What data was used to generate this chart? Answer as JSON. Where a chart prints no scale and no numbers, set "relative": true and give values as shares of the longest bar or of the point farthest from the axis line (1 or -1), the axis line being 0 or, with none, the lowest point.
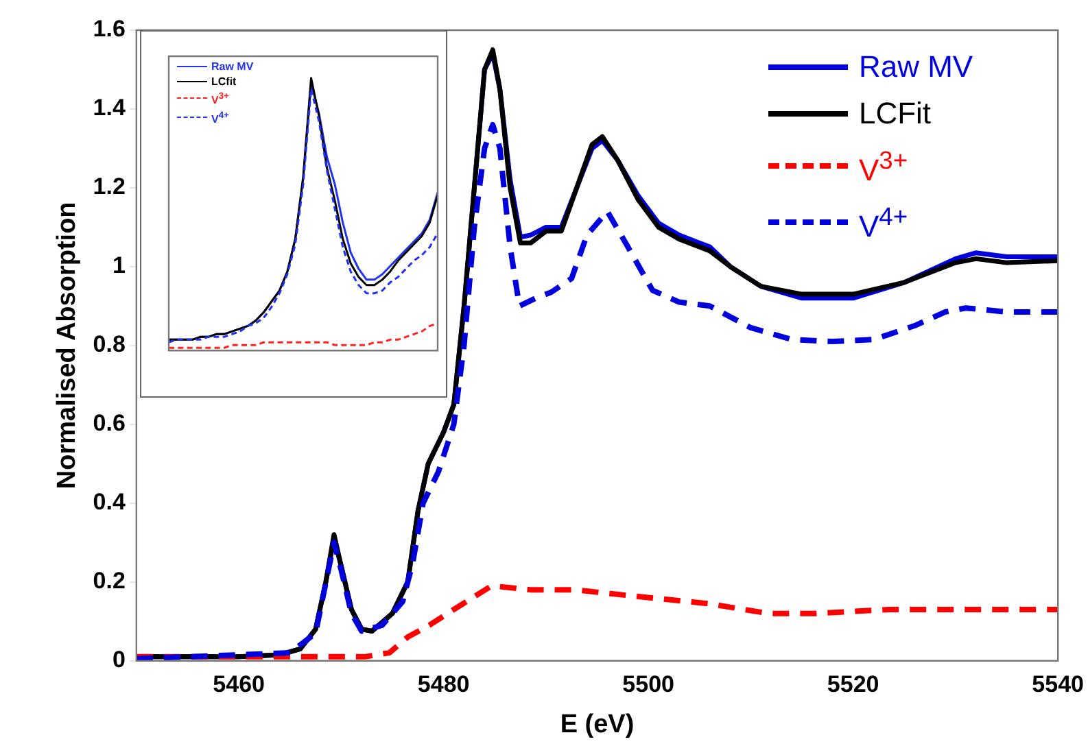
{
  "chart_data": [
    {
      "type": "line",
      "xlabel": "E (eV)",
      "ylabel": "Normalised Absorption",
      "xlim": [
        5450,
        5540
      ],
      "xticks": [
        5460,
        5480,
        5500,
        5520,
        5540
      ],
      "ylim": [
        0,
        1.6
      ],
      "yticks": [
        0,
        0.2,
        0.4,
        0.6,
        0.8,
        1,
        1.2,
        1.4,
        1.6
      ],
      "legend": "top right",
      "grid": false,
      "series": [
        {
          "name": "Raw MV",
          "color": "#0000dd",
          "line_style": "solid",
          "x": [
            5450,
            5460,
            5464,
            5466,
            5467.5,
            5468.5,
            5469.3,
            5470,
            5471,
            5472,
            5473,
            5475,
            5476.5,
            5477.5,
            5478.5,
            5480,
            5481,
            5482,
            5483,
            5484,
            5484.8,
            5485.5,
            5486.5,
            5487.5,
            5488.5,
            5490,
            5491.5,
            5493,
            5494.5,
            5495.5,
            5497,
            5499,
            5501,
            5503,
            5506,
            5508,
            5511,
            5515,
            5520,
            5525,
            5530,
            5532,
            5535,
            5540
          ],
          "values": [
            0.01,
            0.01,
            0.015,
            0.03,
            0.08,
            0.2,
            0.31,
            0.24,
            0.13,
            0.08,
            0.075,
            0.12,
            0.2,
            0.38,
            0.5,
            0.58,
            0.65,
            0.9,
            1.2,
            1.5,
            1.54,
            1.45,
            1.22,
            1.075,
            1.08,
            1.1,
            1.1,
            1.2,
            1.3,
            1.32,
            1.27,
            1.18,
            1.11,
            1.08,
            1.05,
            1.0,
            0.95,
            0.92,
            0.92,
            0.96,
            1.02,
            1.035,
            1.025,
            1.025
          ]
        },
        {
          "name": "LCFit",
          "color": "#000000",
          "line_style": "solid",
          "x": [
            5450,
            5460,
            5464,
            5466,
            5467.5,
            5468.5,
            5469.3,
            5470,
            5471,
            5472,
            5473,
            5475,
            5476.5,
            5477.5,
            5478.5,
            5480,
            5481,
            5482,
            5483,
            5484,
            5484.8,
            5485.5,
            5486.5,
            5487.5,
            5488.5,
            5490,
            5491.5,
            5493,
            5494.5,
            5495.5,
            5497,
            5499,
            5501,
            5503,
            5506,
            5508,
            5511,
            5515,
            5520,
            5525,
            5530,
            5532,
            5535,
            5540
          ],
          "values": [
            0.01,
            0.01,
            0.015,
            0.03,
            0.08,
            0.2,
            0.32,
            0.24,
            0.13,
            0.08,
            0.075,
            0.12,
            0.2,
            0.38,
            0.5,
            0.58,
            0.65,
            0.9,
            1.2,
            1.5,
            1.55,
            1.45,
            1.2,
            1.06,
            1.06,
            1.09,
            1.09,
            1.2,
            1.31,
            1.33,
            1.27,
            1.17,
            1.1,
            1.07,
            1.04,
            1.0,
            0.95,
            0.93,
            0.93,
            0.96,
            1.01,
            1.02,
            1.01,
            1.015
          ]
        },
        {
          "name": "V$^{3+}$",
          "color": "#ff0000",
          "line_style": "dashed",
          "x": [
            5450,
            5465,
            5472.3,
            5474.7,
            5476.5,
            5478.6,
            5481,
            5484.7,
            5488.5,
            5492.8,
            5498.2,
            5505.8,
            5511.7,
            5516.4,
            5523.5,
            5530,
            5540
          ],
          "values": [
            0.01,
            0.01,
            0.01,
            0.02,
            0.06,
            0.09,
            0.13,
            0.19,
            0.18,
            0.18,
            0.165,
            0.145,
            0.12,
            0.12,
            0.13,
            0.13,
            0.13
          ]
        },
        {
          "name": "V$^{4+}$",
          "color": "#0000dd",
          "line_style": "dashed",
          "x": [
            5450,
            5465,
            5467.5,
            5469.3,
            5470,
            5471,
            5472,
            5474,
            5475,
            5476,
            5477,
            5478,
            5479.5,
            5481,
            5482,
            5483,
            5484,
            5484.8,
            5485.5,
            5486.5,
            5487.4,
            5489,
            5490.5,
            5492.5,
            5494,
            5496,
            5498,
            5500.4,
            5503,
            5506,
            5510,
            5514,
            5518,
            5522,
            5526,
            5529,
            5531,
            5535,
            5540
          ],
          "values": [
            0.005,
            0.02,
            0.07,
            0.3,
            0.23,
            0.12,
            0.075,
            0.09,
            0.12,
            0.15,
            0.25,
            0.4,
            0.48,
            0.6,
            0.8,
            1.1,
            1.3,
            1.36,
            1.3,
            1.05,
            0.9,
            0.92,
            0.935,
            0.97,
            1.08,
            1.14,
            1.05,
            0.94,
            0.91,
            0.9,
            0.845,
            0.815,
            0.81,
            0.815,
            0.85,
            0.885,
            0.895,
            0.885,
            0.885
          ]
        }
      ]
    },
    {
      "type": "line",
      "relative": true,
      "categories": [
        null,
        null,
        null,
        null,
        null,
        null,
        null,
        null,
        null,
        null,
        null,
        null,
        null,
        null,
        null,
        null,
        null,
        null,
        null,
        null,
        null,
        null,
        null,
        null,
        null,
        null,
        null,
        null,
        null,
        null,
        null,
        null,
        null,
        null,
        null
      ],
      "legend": "top left",
      "grid": false,
      "series": [
        {
          "name": "Raw MV",
          "color": "#2233ee",
          "line_style": "solid",
          "values": [
            0.04,
            0.04,
            0.04,
            0.04,
            0.05,
            0.05,
            0.06,
            0.06,
            0.07,
            0.08,
            0.09,
            0.11,
            0.14,
            0.18,
            0.22,
            0.29,
            0.41,
            0.63,
            0.98,
            0.87,
            0.71,
            0.61,
            0.47,
            0.36,
            0.3,
            0.26,
            0.26,
            0.28,
            0.31,
            0.34,
            0.37,
            0.4,
            0.43,
            0.48,
            0.58
          ]
        },
        {
          "name": "LCfit",
          "color": "#000000",
          "line_style": "solid",
          "values": [
            0.04,
            0.04,
            0.04,
            0.04,
            0.05,
            0.05,
            0.06,
            0.06,
            0.07,
            0.08,
            0.09,
            0.11,
            0.14,
            0.18,
            0.22,
            0.29,
            0.41,
            0.64,
            1,
            0.86,
            0.67,
            0.55,
            0.41,
            0.32,
            0.27,
            0.24,
            0.24,
            0.26,
            0.29,
            0.33,
            0.36,
            0.39,
            0.42,
            0.47,
            0.57
          ]
        },
        {
          "name": "V$^{3+}$",
          "color": "#ff2222",
          "line_style": "dashed",
          "values": [
            0.01,
            0.01,
            0.01,
            0.01,
            0.01,
            0.01,
            0.01,
            0.01,
            0.02,
            0.02,
            0.02,
            0.02,
            0.03,
            0.03,
            0.03,
            0.03,
            0.03,
            0.03,
            0.03,
            0.03,
            0.03,
            0.02,
            0.02,
            0.02,
            0.02,
            0.02,
            0.03,
            0.03,
            0.04,
            0.04,
            0.05,
            0.06,
            0.07,
            0.09,
            0.1
          ]
        },
        {
          "name": "V$^{4+}$",
          "color": "#2233ee",
          "line_style": "dashed",
          "values": [
            0.03,
            0.04,
            0.04,
            0.04,
            0.04,
            0.05,
            0.05,
            0.05,
            0.06,
            0.07,
            0.09,
            0.1,
            0.12,
            0.16,
            0.21,
            0.28,
            0.39,
            0.61,
            0.96,
            0.84,
            0.66,
            0.52,
            0.38,
            0.29,
            0.24,
            0.21,
            0.21,
            0.22,
            0.25,
            0.27,
            0.3,
            0.33,
            0.35,
            0.38,
            0.43
          ]
        }
      ]
    }
  ]
}
